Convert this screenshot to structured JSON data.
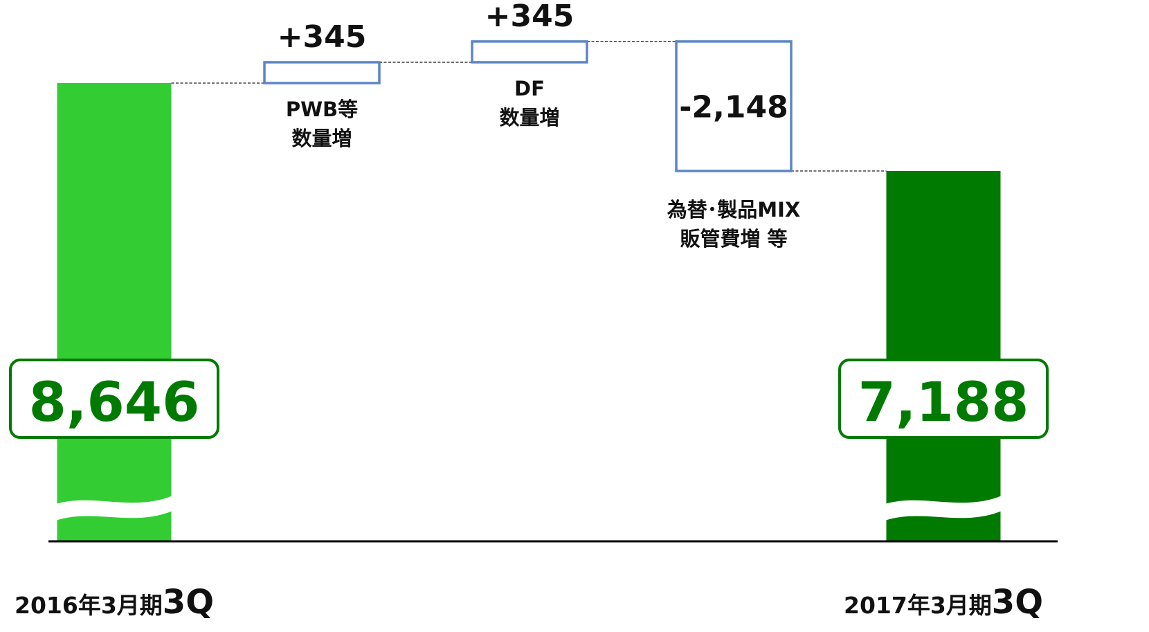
{
  "chart_data": {
    "type": "bar",
    "subtype": "waterfall",
    "axis_break": true,
    "ylim": [
      6400,
      9500
    ],
    "categories": [
      {
        "x_label": "2016年3月期",
        "x_label_suffix": "3Q",
        "kind": "total",
        "value": 8646,
        "value_label": "8,646",
        "color": "#33cc33"
      },
      {
        "desc": [
          "PWB等",
          "数量増"
        ],
        "kind": "delta",
        "value": 345,
        "value_label": "+345"
      },
      {
        "desc": [
          "DF",
          "数量増"
        ],
        "kind": "delta",
        "value": 345,
        "value_label": "+345"
      },
      {
        "desc": [
          "為替･製品MIX",
          "販管費増 等"
        ],
        "kind": "delta",
        "value": -2148,
        "value_label": "-2,148"
      },
      {
        "x_label": "2017年3月期",
        "x_label_suffix": "3Q",
        "kind": "total",
        "value": 7188,
        "value_label": "7,188",
        "color": "#007a00"
      }
    ],
    "colors": {
      "delta_stroke": "#5b86c5",
      "total_label_border": "#007a00",
      "total_label_text": "#007a00",
      "connector": "#444444",
      "baseline": "#000000"
    }
  }
}
